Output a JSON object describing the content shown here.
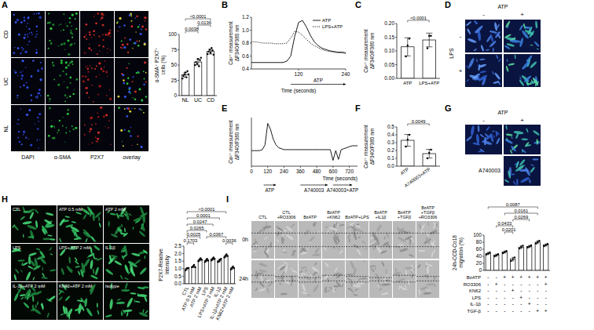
{
  "chart_data": [
    {
      "type": "bar",
      "y_label": "α-SMA⁺ P2X7⁺ cells (%)",
      "categories": [
        "NL",
        "UC",
        "CD"
      ],
      "values": [
        34,
        55,
        72
      ],
      "errors": [
        4,
        5,
        4
      ],
      "points": [
        [
          28,
          32,
          35,
          38,
          30,
          40,
          35
        ],
        [
          50,
          55,
          52,
          60,
          48,
          58,
          62
        ],
        [
          68,
          72,
          75,
          70,
          78,
          74,
          67
        ]
      ],
      "color": "#ffffff",
      "ylim": [
        0,
        100
      ],
      "yticks": [
        0,
        25,
        50,
        75,
        100
      ],
      "comparisons": [
        {
          "label": "0.0038",
          "groups": [
            0,
            1
          ]
        },
        {
          "label": "0.0136",
          "groups": [
            1,
            2
          ]
        },
        {
          "label": "<0.0001",
          "groups": [
            0,
            2
          ]
        }
      ]
    },
    {
      "panel": "B",
      "type": "line",
      "y_label": "Ca²⁺ measurement ΔF340/F380 nm",
      "x_label": "Time (seconds)",
      "x": [
        0,
        10,
        20,
        30,
        40,
        50,
        60,
        70,
        80,
        90,
        100,
        110,
        120,
        130,
        140,
        150,
        160,
        170,
        180,
        190,
        200,
        210,
        220,
        230,
        240
      ],
      "series": [
        {
          "name": "ATP",
          "color": "#000000",
          "line_style": "solid",
          "values": [
            0.5,
            0.5,
            0.5,
            0.5,
            0.5,
            0.5,
            0.5,
            0.5,
            0.5,
            0.52,
            0.6,
            0.9,
            1.12,
            1.15,
            1.05,
            0.92,
            0.82,
            0.76,
            0.72,
            0.7,
            0.68,
            0.67,
            0.66,
            0.66,
            0.65
          ]
        },
        {
          "name": "LPS+ATP",
          "color": "#000000",
          "line_style": "dotted",
          "values": [
            0.82,
            0.82,
            0.81,
            0.8,
            0.8,
            0.8,
            0.79,
            0.79,
            0.79,
            0.8,
            0.88,
            0.98,
            0.97,
            0.92,
            0.86,
            0.8,
            0.76,
            0.73,
            0.7,
            0.68,
            0.67,
            0.66,
            0.65,
            0.65,
            0.64
          ]
        }
      ],
      "xlim": [
        0,
        240
      ],
      "xticks": [
        120,
        240
      ],
      "ylim": [
        0.4,
        1.2
      ],
      "yticks": [
        0.4,
        0.6,
        0.8,
        {
          "value": 1,
          "label": "1.0"
        },
        1.2
      ],
      "legend": "upper right",
      "annotations": [
        {
          "text": "ATP",
          "x_start": 100,
          "x_end": 240
        }
      ]
    },
    {
      "panel": "C",
      "type": "bar",
      "y_label": "Ca²⁺ measurement ΔF340/F380 nm",
      "categories": [
        "ATP",
        "LPS+ATP"
      ],
      "values": [
        0.115,
        0.14
      ],
      "errors": [
        0.033,
        0.025
      ],
      "points": [
        [
          0.08,
          0.12,
          0.145
        ],
        [
          0.11,
          0.155,
          0.155
        ]
      ],
      "color": "#ffffff",
      "ylim": [
        0,
        0.2
      ],
      "yticks": [
        {
          "value": 0,
          "label": "0.00"
        },
        0.05,
        {
          "value": 0.1,
          "label": "0.10"
        },
        0.15,
        {
          "value": 0.2,
          "label": "0.20"
        }
      ],
      "comparisons": [
        {
          "label": "<0.0001",
          "groups": [
            0,
            1
          ]
        }
      ]
    },
    {
      "panel": "E",
      "type": "line",
      "y_label": "Ca²⁺ measurement ΔF340/F380 nm",
      "x_label": "Time (seconds)",
      "x": [
        0,
        20,
        40,
        60,
        80,
        100,
        120,
        140,
        160,
        180,
        200,
        220,
        240,
        260,
        280,
        300,
        320,
        340,
        360,
        380,
        400,
        420,
        440,
        460,
        480,
        500,
        520,
        540,
        560,
        580,
        600,
        620,
        640,
        660,
        680,
        700,
        720,
        740,
        760,
        780
      ],
      "series": [
        {
          "color": "#000000",
          "line_style": "solid",
          "values": [
            0.56,
            0.56,
            0.56,
            0.56,
            0.57,
            0.62,
            0.84,
            0.78,
            0.68,
            0.62,
            0.59,
            0.58,
            0.57,
            0.57,
            0.57,
            0.57,
            0.57,
            0.57,
            0.57,
            0.57,
            0.57,
            0.57,
            0.57,
            0.57,
            0.57,
            0.57,
            0.57,
            0.57,
            0.57,
            0.57,
            0.46,
            0.56,
            0.47,
            0.57,
            0.58,
            0.59,
            0.6,
            0.61,
            0.61,
            0.61
          ]
        }
      ],
      "xlim": [
        0,
        780
      ],
      "xticks": [
        0,
        120,
        240,
        360,
        480,
        600,
        720
      ],
      "ylim": [
        0.4,
        0.9
      ],
      "tick_labels": "x",
      "annotations": [
        {
          "text": "ATP",
          "x_start": 90,
          "x_end": 180
        },
        {
          "text": "A740003",
          "x_start": 360,
          "x_end": 560
        },
        {
          "text": "A740003+ATP",
          "x_start": 600,
          "x_end": 740
        }
      ]
    },
    {
      "panel": "F",
      "type": "bar",
      "y_label": "Ca²⁺ measurement ΔF340/F380 nm",
      "categories": [
        "ATP",
        "A740003+ATP"
      ],
      "values": [
        0.33,
        0.16
      ],
      "errors": [
        0.075,
        0.055
      ],
      "points": [
        [
          0.25,
          0.34,
          0.4
        ],
        [
          0.1,
          0.17,
          0.21
        ]
      ],
      "color": "#ffffff",
      "ylim": [
        0,
        0.5
      ],
      "yticks": [
        {
          "value": 0,
          "label": "0.0"
        },
        0.1,
        0.2,
        0.3,
        0.4,
        0.5
      ],
      "comparisons": [
        {
          "label": "0.0049",
          "groups": [
            0,
            1
          ]
        }
      ]
    },
    {
      "type": "bar",
      "y_label": "P2X7-Relative Intensity",
      "categories": [
        "CTL",
        "ATP 0.5 mM",
        "ATP 2 mM",
        "LPS",
        "LPS+ATP 2 mM",
        "IL-1β",
        "IL-1β+ATP 2 mM",
        "KN62+ATP 2 mM"
      ],
      "values": [
        1.0,
        1.15,
        1.6,
        1.55,
        1.65,
        1.55,
        1.85,
        1.05
      ],
      "errors": [
        0.07,
        0.07,
        0.08,
        0.08,
        0.08,
        0.09,
        0.08,
        0.08
      ],
      "points": [
        [
          0.9,
          1.0,
          1.05,
          1.05
        ],
        [
          1.1,
          1.15,
          1.25,
          1.1
        ],
        [
          1.5,
          1.6,
          1.7,
          1.6
        ],
        [
          1.45,
          1.55,
          1.65,
          1.55
        ],
        [
          1.55,
          1.65,
          1.75,
          1.65
        ],
        [
          1.45,
          1.5,
          1.6,
          1.65
        ],
        [
          1.75,
          1.85,
          1.95,
          1.85
        ],
        [
          0.95,
          1.05,
          1.15,
          1.05
        ]
      ],
      "color": "#ffffff",
      "ylim": [
        0,
        2.5
      ],
      "yticks": [
        {
          "value": 0,
          "label": "0.0"
        },
        0.5,
        {
          "value": 1,
          "label": "1.0"
        },
        1.5,
        {
          "value": 2,
          "label": "2.0"
        },
        2.5
      ],
      "comparisons": [
        {
          "label": "0.1703",
          "groups": [
            0,
            1
          ]
        },
        {
          "label": "0.0036",
          "groups": [
            6,
            7
          ]
        },
        {
          "label": "0.0025",
          "groups": [
            0,
            2
          ]
        },
        {
          "label": "0.0265",
          "groups": [
            0,
            3
          ]
        },
        {
          "label": "0.0247",
          "groups": [
            0,
            4
          ]
        },
        {
          "label": "0.0001",
          "groups": [
            0,
            5
          ]
        },
        {
          "label": "0.0367",
          "groups": [
            3,
            6
          ]
        },
        {
          "label": "<0.0001",
          "groups": [
            0,
            6
          ]
        }
      ]
    },
    {
      "type": "bar",
      "y_label": "24h-CCD-Co18 migration (%)",
      "categories": [
        null,
        null,
        null,
        null,
        null,
        null,
        null,
        null
      ],
      "values": [
        48,
        43,
        52,
        32,
        66,
        68,
        80,
        72
      ],
      "errors": [
        3,
        3,
        3,
        5,
        4,
        3,
        4,
        3
      ],
      "points": [
        [
          45,
          48,
          51
        ],
        [
          40,
          43,
          46
        ],
        [
          49,
          52,
          55
        ],
        [
          27,
          32,
          37
        ],
        [
          62,
          66,
          70
        ],
        [
          65,
          68,
          71
        ],
        [
          76,
          80,
          84
        ],
        [
          69,
          72,
          75
        ]
      ],
      "color": "#ffffff",
      "ylim": [
        0,
        100
      ],
      "yticks": [
        0,
        20,
        40,
        60,
        80,
        100
      ],
      "comparisons": [
        {
          "label": "0.0201",
          "groups": [
            2,
            3
          ]
        },
        {
          "label": "0.0433",
          "groups": [
            1,
            3
          ]
        },
        {
          "label": "0.0269",
          "groups": [
            3,
            5
          ]
        },
        {
          "label": "0.0161",
          "groups": [
            2,
            6
          ]
        },
        {
          "label": "0.0087",
          "groups": [
            0,
            6
          ]
        }
      ],
      "conditions": [
        {
          "name": "BzATP",
          "levels": [
            "-",
            "-",
            "+",
            "+",
            "+",
            "+",
            "+",
            "+"
          ]
        },
        {
          "name": "RO3306",
          "levels": [
            "-",
            "+",
            "-",
            "-",
            "-",
            "-",
            "-",
            "+"
          ]
        },
        {
          "name": "KN62",
          "levels": [
            "-",
            "-",
            "-",
            "+",
            "-",
            "-",
            "-",
            "-"
          ]
        },
        {
          "name": "LPS",
          "levels": [
            "-",
            "-",
            "-",
            "-",
            "+",
            "-",
            "-",
            "-"
          ]
        },
        {
          "name": "IL-1β",
          "levels": [
            "-",
            "-",
            "-",
            "-",
            "-",
            "+",
            "-",
            "-"
          ]
        },
        {
          "name": "TGF-β",
          "levels": [
            "-",
            "-",
            "-",
            "-",
            "-",
            "-",
            "+",
            "+"
          ]
        }
      ]
    }
  ],
  "image_panels": {
    "A": {
      "panel": "A",
      "rows": [
        "CD",
        "UC",
        "NL"
      ],
      "columns": [
        "DAPI",
        "α-SMA",
        "P2X7",
        "overlay"
      ]
    },
    "D": {
      "panel": "D",
      "column_head": "ATP",
      "columns": [
        "-",
        "+"
      ],
      "row_head": "LPS",
      "rows": [
        "-",
        "+"
      ]
    },
    "G": {
      "panel": "G",
      "column_head": "ATP",
      "columns": [
        "-",
        "+"
      ],
      "row_label": "A740003"
    },
    "H": {
      "panel": "H",
      "labels": [
        "CTL",
        "ATP 0.5 mM",
        "ATP 2 mM",
        "LPS",
        "LPS+ ATP 2 mM",
        "IL-1β",
        "IL-1β+ATP 2 mM",
        "KN62+ATP 2 mM",
        "Isotype"
      ]
    },
    "I": {
      "panel": "I",
      "rows": [
        "0h",
        "24h"
      ],
      "columns": [
        "CTL",
        "CTL+RO3306",
        "BzATP",
        "BzATP+KN62",
        "BzATP+LPS",
        "BzATP+IL1β",
        "BzATP+TGFβ",
        "BzATP+TGFβ+RO3306"
      ]
    }
  }
}
